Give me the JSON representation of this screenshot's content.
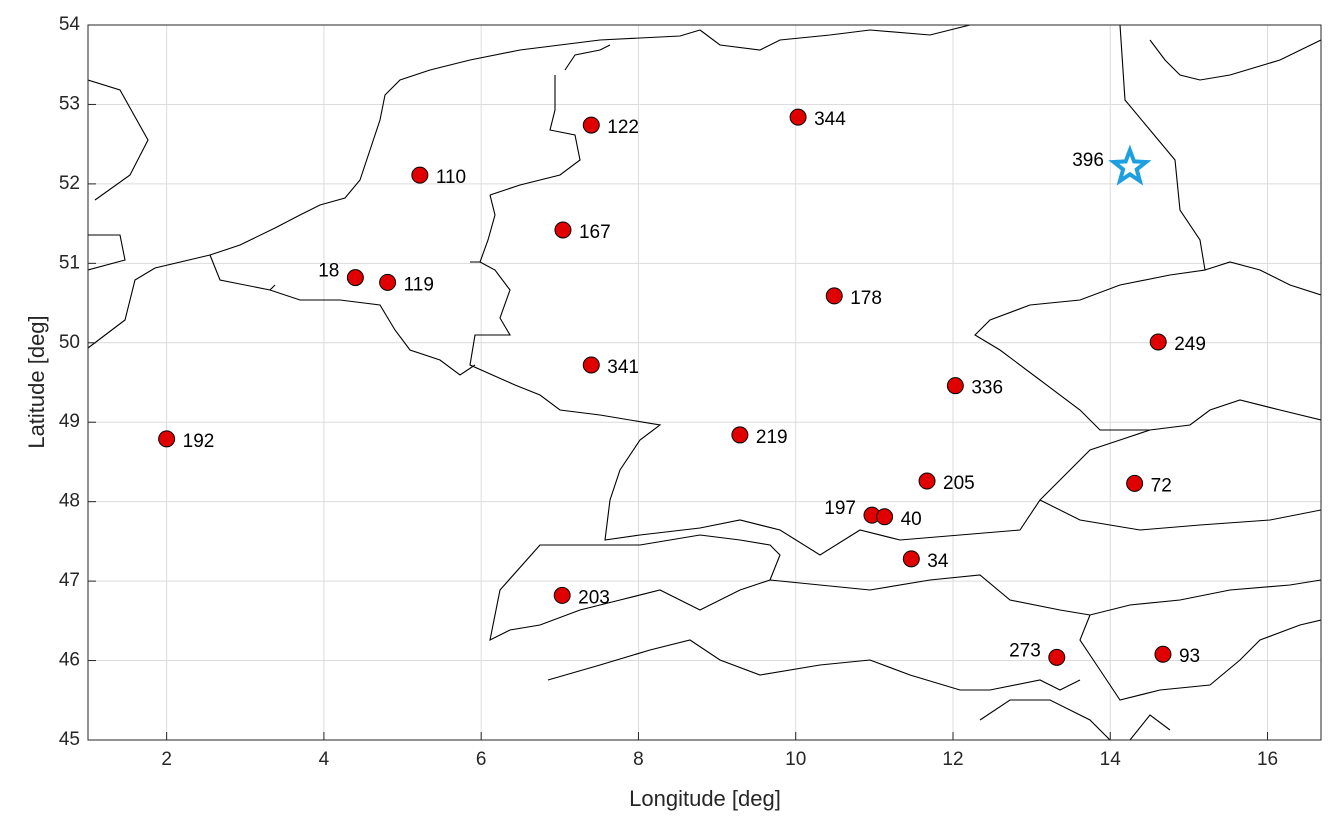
{
  "chart_data": {
    "type": "scatter",
    "x_label": "Longitude [deg]",
    "y_label": "Latitude [deg]",
    "xlim": [
      1,
      16.68
    ],
    "ylim": [
      45,
      54
    ],
    "xticks": [
      2,
      4,
      6,
      8,
      10,
      12,
      14,
      16
    ],
    "yticks": [
      45,
      46,
      47,
      48,
      49,
      50,
      51,
      52,
      53,
      54
    ],
    "grid": true,
    "series": [
      {
        "marker": "circle",
        "color": "#e00000",
        "labels": [
          "192",
          "18",
          "119",
          "110",
          "122",
          "167",
          "341",
          "344",
          "178",
          "219",
          "336",
          "205",
          "197",
          "40",
          "34",
          "203",
          "249",
          "72",
          "273",
          "93"
        ],
        "x": [
          2.0,
          4.4,
          4.81,
          5.22,
          7.4,
          7.04,
          7.4,
          10.03,
          10.49,
          9.29,
          12.03,
          11.67,
          10.97,
          11.13,
          11.47,
          7.03,
          14.61,
          14.31,
          13.32,
          14.67
        ],
        "values": [
          48.79,
          50.82,
          50.76,
          52.11,
          52.74,
          51.42,
          49.72,
          52.84,
          50.59,
          48.84,
          49.46,
          48.26,
          47.83,
          47.81,
          47.28,
          46.82,
          50.01,
          48.23,
          46.04,
          46.08
        ]
      },
      {
        "marker": "star",
        "color": "#1ea0e0",
        "labels": [
          "396"
        ],
        "x": [
          14.25
        ],
        "values": [
          52.21
        ]
      }
    ]
  }
}
